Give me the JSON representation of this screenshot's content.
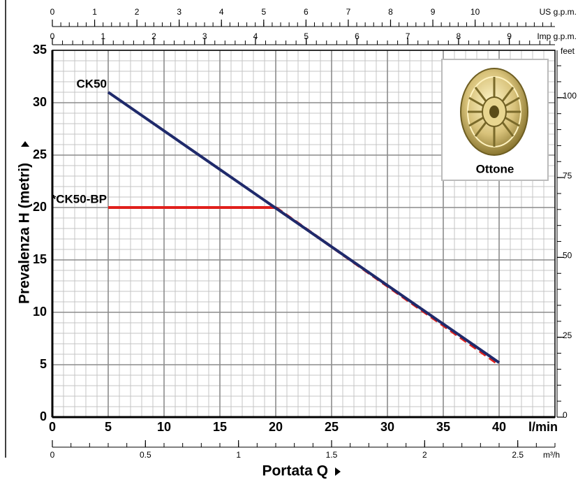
{
  "chart_data": {
    "type": "line",
    "x_label": "Portata Q",
    "y_label": "Prevalenza H  (metri)",
    "x_unit": "l/min",
    "xlim": [
      0,
      45
    ],
    "xticks": [
      0,
      5,
      10,
      15,
      20,
      25,
      30,
      35,
      40
    ],
    "ylim": [
      0,
      35
    ],
    "yticks": [
      0,
      5,
      10,
      15,
      20,
      25,
      30,
      35
    ],
    "grid": true,
    "grid_step": 1,
    "series": [
      {
        "name": "*CK50-BP",
        "color": "#e0201c",
        "x": [
          5,
          20,
          40
        ],
        "values": [
          20,
          20,
          5
        ],
        "linestyle": [
          "solid",
          "dashed"
        ]
      },
      {
        "name": "CK50",
        "color": "#1f2a6b",
        "x": [
          5,
          40
        ],
        "values": [
          31,
          5.2
        ],
        "linestyle": [
          "solid"
        ]
      }
    ],
    "us_gpm_axis": {
      "label": "US g.p.m.",
      "lim": [
        0,
        11.889
      ],
      "ticks": [
        0,
        1,
        2,
        3,
        4,
        5,
        6,
        7,
        8,
        9,
        10
      ],
      "minor_step": 0.2
    },
    "imp_gpm_axis": {
      "label": "Imp g.p.m.",
      "lim": [
        0,
        9.899
      ],
      "ticks": [
        0,
        1,
        2,
        3,
        4,
        5,
        6,
        7,
        8,
        9
      ],
      "minor_step": 0.2
    },
    "m3h_axis": {
      "label": "m³/h",
      "lim": [
        0,
        2.7
      ],
      "ticks": [
        0,
        0.5,
        1,
        1.5,
        2,
        2.5
      ],
      "minor_step": 0.1
    },
    "feet_axis": {
      "label": "feet",
      "lim": [
        0,
        114.83
      ],
      "ticks": [
        0,
        25,
        50,
        75,
        100
      ],
      "minor_step": 5
    },
    "inset": {
      "label": "Ottone"
    }
  }
}
